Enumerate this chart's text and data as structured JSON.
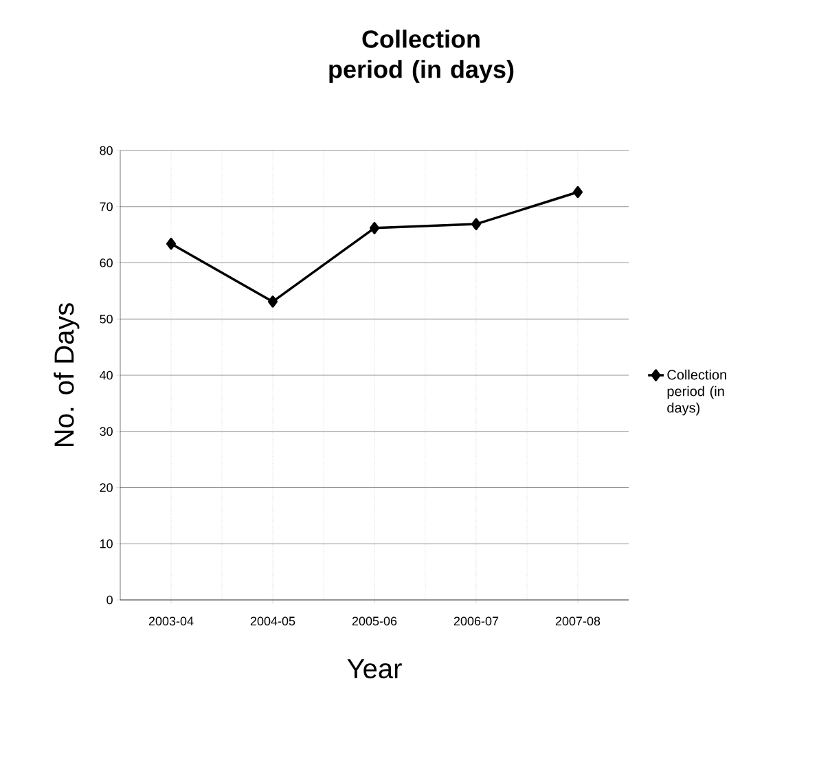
{
  "chart_data": {
    "type": "line",
    "title": "Collection period (in days)",
    "xlabel": "Year",
    "ylabel": "No. of Days",
    "categories": [
      "2003-04",
      "2004-05",
      "2005-06",
      "2006-07",
      "2007-08"
    ],
    "series": [
      {
        "name": "Collection period (in days)",
        "color": "#000000",
        "values": [
          63.4,
          53.1,
          66.2,
          66.9,
          72.6
        ]
      }
    ],
    "ylim": [
      0,
      80
    ],
    "yticks": [
      0,
      10,
      20,
      30,
      40,
      50,
      60,
      70,
      80
    ],
    "grid": true,
    "legend": "right",
    "marker": "diamond"
  }
}
